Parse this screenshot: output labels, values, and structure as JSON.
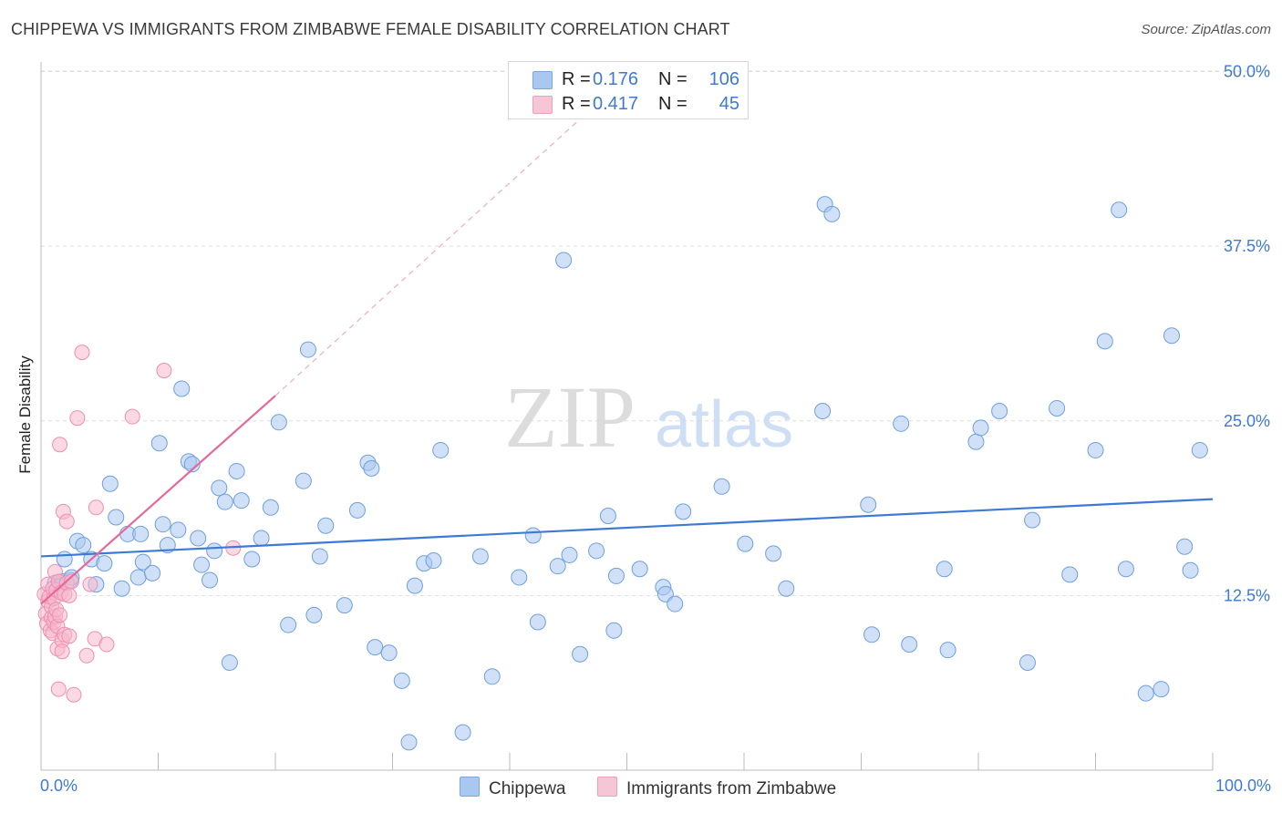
{
  "header": {
    "title": "CHIPPEWA VS IMMIGRANTS FROM ZIMBABWE FEMALE DISABILITY CORRELATION CHART",
    "source": "Source: ZipAtlas.com"
  },
  "watermark": {
    "zip": "ZIP",
    "atlas": "atlas"
  },
  "legend": {
    "rows": [
      {
        "r_label": "R =",
        "r_value": "0.176",
        "n_label": "N =",
        "n_value": "106",
        "color": "#a9c8f0"
      },
      {
        "r_label": "R =",
        "r_value": "0.417",
        "n_label": "N =",
        "n_value": "45",
        "color": "#f7b8cc"
      }
    ]
  },
  "bottom_legend": {
    "series_a": "Chippewa",
    "series_b": "Immigrants from Zimbabwe"
  },
  "colors": {
    "blue": "#3d7ad6",
    "blue_fill": "#a9c8f0",
    "pink": "#e8679a",
    "pink_fill": "#f7b8cc",
    "grid": "#dddddd"
  },
  "chart_data": {
    "type": "scatter",
    "title": "CHIPPEWA VS IMMIGRANTS FROM ZIMBABWE FEMALE DISABILITY CORRELATION CHART",
    "xlabel": "",
    "ylabel": "Female Disability",
    "xlim": [
      0,
      100
    ],
    "ylim": [
      0,
      52
    ],
    "x_tick_labels": [
      "0.0%",
      "100.0%"
    ],
    "y_ticks": [
      12.5,
      25.0,
      37.5,
      50.0
    ],
    "y_tick_labels": [
      "12.5%",
      "25.0%",
      "37.5%",
      "50.0%"
    ],
    "grid": "horizontal dashed",
    "legend_placement": "top-center",
    "series": [
      {
        "name": "Chippewa",
        "R": 0.176,
        "N": 106,
        "trend": {
          "x": [
            0,
            100
          ],
          "y": [
            15.3,
            19.4
          ]
        },
        "points": [
          [
            1.2,
            13.4
          ],
          [
            1.5,
            13.1
          ],
          [
            1.8,
            13.5
          ],
          [
            2.0,
            15.1
          ],
          [
            2.5,
            13.6
          ],
          [
            2.6,
            13.8
          ],
          [
            3.1,
            16.4
          ],
          [
            3.6,
            16.1
          ],
          [
            4.3,
            15.1
          ],
          [
            4.7,
            13.3
          ],
          [
            5.4,
            14.8
          ],
          [
            5.9,
            20.5
          ],
          [
            6.4,
            18.1
          ],
          [
            6.9,
            13.0
          ],
          [
            7.4,
            16.9
          ],
          [
            8.3,
            13.8
          ],
          [
            8.5,
            16.9
          ],
          [
            8.7,
            14.9
          ],
          [
            9.5,
            14.1
          ],
          [
            10.1,
            23.4
          ],
          [
            10.4,
            17.6
          ],
          [
            10.8,
            16.1
          ],
          [
            11.7,
            17.2
          ],
          [
            12.0,
            27.3
          ],
          [
            12.6,
            22.1
          ],
          [
            12.9,
            21.9
          ],
          [
            13.4,
            16.6
          ],
          [
            13.7,
            14.7
          ],
          [
            14.4,
            13.6
          ],
          [
            14.8,
            15.7
          ],
          [
            15.2,
            20.2
          ],
          [
            15.7,
            19.2
          ],
          [
            16.1,
            7.7
          ],
          [
            16.7,
            21.4
          ],
          [
            17.1,
            19.3
          ],
          [
            18.0,
            15.1
          ],
          [
            18.8,
            16.6
          ],
          [
            19.6,
            18.8
          ],
          [
            20.3,
            24.9
          ],
          [
            21.1,
            10.4
          ],
          [
            22.4,
            20.7
          ],
          [
            22.8,
            30.1
          ],
          [
            23.3,
            11.1
          ],
          [
            23.8,
            15.3
          ],
          [
            24.3,
            17.5
          ],
          [
            25.9,
            11.8
          ],
          [
            27.0,
            18.6
          ],
          [
            27.9,
            22.0
          ],
          [
            28.2,
            21.6
          ],
          [
            28.5,
            8.8
          ],
          [
            29.7,
            8.4
          ],
          [
            30.8,
            6.4
          ],
          [
            31.4,
            2.0
          ],
          [
            31.9,
            13.2
          ],
          [
            32.7,
            14.8
          ],
          [
            33.5,
            15.0
          ],
          [
            34.1,
            22.9
          ],
          [
            36.0,
            2.7
          ],
          [
            37.5,
            15.3
          ],
          [
            38.5,
            6.7
          ],
          [
            40.8,
            13.8
          ],
          [
            42.0,
            16.8
          ],
          [
            42.4,
            10.6
          ],
          [
            44.1,
            14.6
          ],
          [
            44.6,
            36.5
          ],
          [
            45.1,
            15.4
          ],
          [
            46.0,
            8.3
          ],
          [
            47.4,
            15.7
          ],
          [
            48.4,
            18.2
          ],
          [
            48.9,
            10.0
          ],
          [
            49.1,
            13.9
          ],
          [
            51.1,
            14.4
          ],
          [
            53.1,
            13.1
          ],
          [
            53.3,
            12.6
          ],
          [
            54.1,
            11.9
          ],
          [
            54.8,
            18.5
          ],
          [
            58.1,
            20.3
          ],
          [
            60.1,
            16.2
          ],
          [
            62.5,
            15.5
          ],
          [
            63.6,
            13.0
          ],
          [
            66.7,
            25.7
          ],
          [
            66.9,
            40.5
          ],
          [
            67.5,
            39.8
          ],
          [
            70.6,
            19.0
          ],
          [
            70.9,
            9.7
          ],
          [
            73.4,
            24.8
          ],
          [
            74.1,
            9.0
          ],
          [
            77.1,
            14.4
          ],
          [
            77.4,
            8.6
          ],
          [
            79.8,
            23.5
          ],
          [
            80.2,
            24.5
          ],
          [
            81.8,
            25.7
          ],
          [
            84.2,
            7.7
          ],
          [
            84.6,
            17.9
          ],
          [
            86.7,
            25.9
          ],
          [
            87.8,
            14.0
          ],
          [
            90.0,
            22.9
          ],
          [
            90.8,
            30.7
          ],
          [
            92.0,
            40.1
          ],
          [
            92.6,
            14.4
          ],
          [
            94.3,
            5.5
          ],
          [
            95.6,
            5.8
          ],
          [
            96.5,
            31.1
          ],
          [
            97.6,
            16.0
          ],
          [
            98.1,
            14.3
          ],
          [
            98.9,
            22.9
          ]
        ]
      },
      {
        "name": "Immigrants from Zimbabwe",
        "R": 0.417,
        "N": 45,
        "trend": {
          "x": [
            0,
            20
          ],
          "y": [
            11.9,
            26.8
          ]
        },
        "trend_extension": {
          "x": [
            20,
            46
          ],
          "y": [
            26.8,
            46.6
          ]
        },
        "points": [
          [
            0.3,
            12.6
          ],
          [
            0.4,
            11.2
          ],
          [
            0.5,
            10.5
          ],
          [
            0.6,
            12.1
          ],
          [
            0.6,
            13.3
          ],
          [
            0.7,
            12.4
          ],
          [
            0.8,
            10.0
          ],
          [
            0.9,
            11.7
          ],
          [
            0.9,
            10.9
          ],
          [
            1.0,
            13.0
          ],
          [
            1.0,
            9.8
          ],
          [
            1.1,
            12.3
          ],
          [
            1.1,
            10.6
          ],
          [
            1.2,
            14.2
          ],
          [
            1.2,
            11.0
          ],
          [
            1.3,
            12.9
          ],
          [
            1.3,
            11.5
          ],
          [
            1.4,
            10.3
          ],
          [
            1.4,
            8.7
          ],
          [
            1.5,
            13.5
          ],
          [
            1.5,
            5.8
          ],
          [
            1.6,
            23.3
          ],
          [
            1.6,
            11.1
          ],
          [
            1.7,
            12.7
          ],
          [
            1.8,
            9.3
          ],
          [
            1.8,
            8.5
          ],
          [
            1.9,
            18.5
          ],
          [
            2.0,
            12.6
          ],
          [
            2.0,
            9.7
          ],
          [
            2.2,
            17.8
          ],
          [
            2.2,
            13.4
          ],
          [
            2.4,
            9.6
          ],
          [
            2.4,
            12.5
          ],
          [
            2.6,
            13.5
          ],
          [
            2.8,
            5.4
          ],
          [
            3.1,
            25.2
          ],
          [
            3.5,
            29.9
          ],
          [
            3.9,
            8.2
          ],
          [
            4.2,
            13.3
          ],
          [
            4.6,
            9.4
          ],
          [
            4.7,
            18.8
          ],
          [
            5.6,
            9.0
          ],
          [
            7.8,
            25.3
          ],
          [
            10.5,
            28.6
          ],
          [
            16.4,
            15.9
          ]
        ]
      }
    ]
  }
}
